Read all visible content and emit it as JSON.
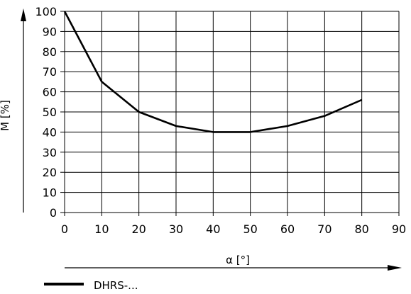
{
  "chart_data": {
    "type": "line",
    "xlabel": "α [°]",
    "ylabel": "M [%]",
    "xlim": [
      0,
      90
    ],
    "ylim": [
      0,
      100
    ],
    "xticks": [
      0,
      10,
      20,
      30,
      40,
      50,
      60,
      70,
      80,
      90
    ],
    "yticks": [
      0,
      10,
      20,
      30,
      40,
      50,
      60,
      70,
      80,
      90,
      100
    ],
    "grid": true,
    "legend_placement": "bottom-left",
    "series": [
      {
        "name": "DHRS-...",
        "color": "#000000",
        "x": [
          0,
          10,
          20,
          30,
          40,
          50,
          60,
          70,
          80
        ],
        "y": [
          100,
          65,
          50,
          43,
          40,
          40,
          43,
          48,
          56
        ]
      }
    ]
  }
}
